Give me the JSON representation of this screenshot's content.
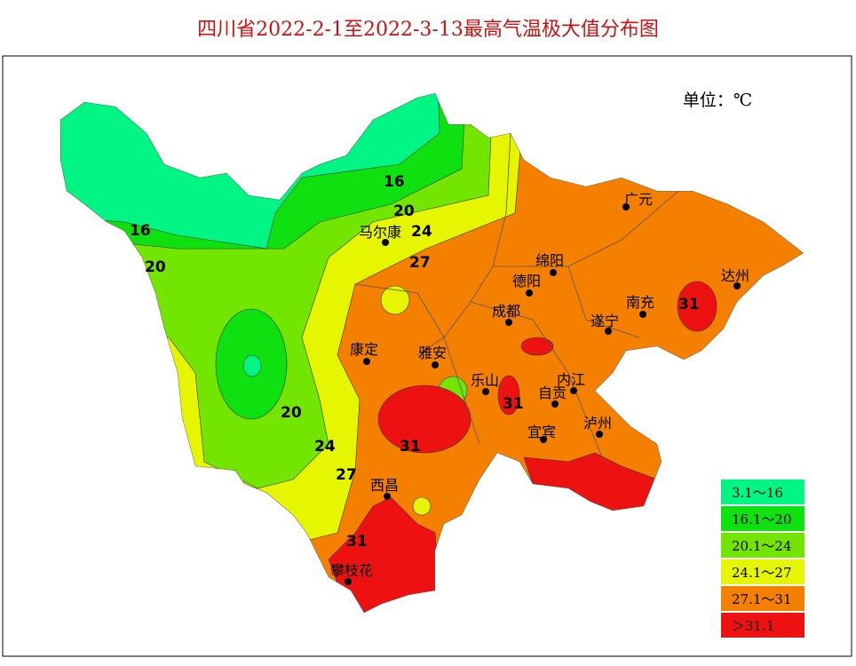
{
  "title": "四川省2022-2-1至2022-3-13最高气温极大值分布图",
  "unit": "单位：℃",
  "legend": [
    {
      "label": "3.1～16",
      "color": "#00f585"
    },
    {
      "label": "16.1～20",
      "color": "#0fe00f"
    },
    {
      "label": "20.1～24",
      "color": "#73e600"
    },
    {
      "label": "24.1～27",
      "color": "#e6f500"
    },
    {
      "label": "27.1～31",
      "color": "#f58000"
    },
    {
      "label": "＞31.1",
      "color": "#ee1111"
    }
  ],
  "cities": [
    "广元",
    "绵阳",
    "德阳",
    "达州",
    "南充",
    "成都",
    "遂宁",
    "马尔康",
    "康定",
    "雅安",
    "乐山",
    "内江",
    "自贡",
    "泸州",
    "宜宾",
    "西昌",
    "攀枝花"
  ],
  "contours": [
    "16",
    "20",
    "24",
    "27",
    "16",
    "20",
    "20",
    "24",
    "27",
    "31",
    "31",
    "31",
    "31"
  ]
}
